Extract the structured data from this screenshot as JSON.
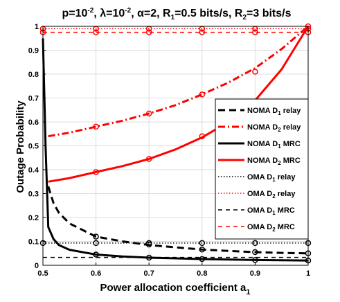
{
  "chart_data": {
    "type": "line",
    "title": {
      "base": "p=10",
      "sup1": "-2",
      "mid": ", λ=10",
      "sup2": "-2",
      "alpha": ", α=2, R",
      "sub1": "1",
      "r1": "=0.5 bits/s, R",
      "sub2": "2",
      "r2": "=3 bits/s"
    },
    "xlabel": {
      "text": "Power allocation coefficient a",
      "sub": "1"
    },
    "ylabel": "Outage Probability",
    "xlim": [
      0.5,
      1
    ],
    "ylim": [
      0,
      1
    ],
    "xticks": [
      0.5,
      0.6,
      0.7,
      0.8,
      0.9,
      1
    ],
    "xtick_labels": [
      "0.5",
      "0.6",
      "0.7",
      "0.8",
      "0.9",
      "1"
    ],
    "yticks": [
      0,
      0.1,
      0.2,
      0.3,
      0.4,
      0.5,
      0.6,
      0.7,
      0.8,
      0.9,
      1
    ],
    "ytick_labels": [
      "0",
      "0.1",
      "0.2",
      "0.3",
      "0.4",
      "0.5",
      "0.6",
      "0.7",
      "0.8",
      "0.9",
      "1"
    ],
    "grid": true,
    "legend_position": "right",
    "colors": {
      "black": "#000000",
      "red": "#ff0000"
    },
    "series": [
      {
        "name": {
          "pre": "NOMA D",
          "sub": "1",
          "post": " relay"
        },
        "color": "#000000",
        "dash": "dash",
        "width": 3,
        "x": [
          0.51,
          0.52,
          0.53,
          0.55,
          0.6,
          0.65,
          0.7,
          0.75,
          0.8,
          0.85,
          0.9,
          0.95,
          1.0
        ],
        "y": [
          0.33,
          0.26,
          0.22,
          0.175,
          0.12,
          0.1,
          0.085,
          0.075,
          0.066,
          0.06,
          0.055,
          0.052,
          0.05
        ],
        "markers_x": [
          0.6,
          0.7,
          0.8,
          0.9,
          1.0
        ],
        "markers_y": [
          0.12,
          0.087,
          0.066,
          0.055,
          0.05
        ]
      },
      {
        "name": {
          "pre": "NOMA D",
          "sub": "2",
          "post": " relay"
        },
        "color": "#ff0000",
        "dash": "dashdot",
        "width": 3,
        "x": [
          0.51,
          0.55,
          0.6,
          0.65,
          0.7,
          0.75,
          0.8,
          0.85,
          0.9,
          0.95,
          1.0
        ],
        "y": [
          0.54,
          0.555,
          0.58,
          0.605,
          0.635,
          0.67,
          0.715,
          0.765,
          0.825,
          0.905,
          1.0
        ],
        "markers_x": [
          0.6,
          0.7,
          0.8,
          0.9,
          1.0
        ],
        "markers_y": [
          0.58,
          0.635,
          0.715,
          0.81,
          0.99
        ]
      },
      {
        "name": {
          "pre": "NOMA D",
          "sub": "1",
          "post": " MRC"
        },
        "color": "#000000",
        "dash": "solid",
        "width": 3,
        "x": [
          0.5,
          0.505,
          0.51,
          0.52,
          0.53,
          0.55,
          0.6,
          0.65,
          0.7,
          0.8,
          0.9,
          1.0
        ],
        "y": [
          0.95,
          0.5,
          0.16,
          0.11,
          0.085,
          0.065,
          0.045,
          0.037,
          0.032,
          0.026,
          0.022,
          0.02
        ],
        "markers_x": [
          0.6,
          0.7,
          0.8,
          0.9,
          1.0
        ],
        "markers_y": [
          0.045,
          0.032,
          0.026,
          0.022,
          0.02
        ]
      },
      {
        "name": {
          "pre": "NOMA D",
          "sub": "2",
          "post": " MRC"
        },
        "color": "#ff0000",
        "dash": "solid",
        "width": 3,
        "x": [
          0.51,
          0.55,
          0.6,
          0.65,
          0.7,
          0.75,
          0.8,
          0.85,
          0.9,
          0.95,
          1.0
        ],
        "y": [
          0.35,
          0.365,
          0.39,
          0.415,
          0.445,
          0.485,
          0.535,
          0.6,
          0.69,
          0.82,
          1.0
        ],
        "markers_x": [
          0.6,
          0.7,
          0.8,
          1.0
        ],
        "markers_y": [
          0.39,
          0.445,
          0.54,
          1.0
        ]
      },
      {
        "name": {
          "pre": "OMA D",
          "sub": "1",
          "post": " relay"
        },
        "color": "#000000",
        "dash": "dot",
        "width": 1.5,
        "x": [
          0.5,
          1.0
        ],
        "y": [
          0.093,
          0.093
        ],
        "markers_x": [
          0.5,
          0.6,
          0.7,
          0.8,
          0.9,
          1.0
        ],
        "markers_y": [
          0.093,
          0.093,
          0.093,
          0.093,
          0.093,
          0.093
        ]
      },
      {
        "name": {
          "pre": "OMA D",
          "sub": "2",
          "post": " relay"
        },
        "color": "#ff0000",
        "dash": "dot",
        "width": 1.5,
        "x": [
          0.5,
          1.0
        ],
        "y": [
          0.99,
          0.99
        ],
        "markers_x": [
          0.5,
          0.6,
          0.7,
          0.8,
          0.9,
          1.0
        ],
        "markers_y": [
          0.99,
          0.99,
          0.99,
          0.99,
          0.99,
          0.99
        ]
      },
      {
        "name": {
          "pre": "OMA D",
          "sub": "1",
          "post": " MRC"
        },
        "color": "#000000",
        "dash": "dashfine",
        "width": 1.5,
        "x": [
          0.5,
          1.0
        ],
        "y": [
          0.033,
          0.033
        ],
        "markers_x": [],
        "markers_y": []
      },
      {
        "name": {
          "pre": "OMA D",
          "sub": "2",
          "post": " MRC"
        },
        "color": "#ff0000",
        "dash": "dashfine",
        "width": 1.5,
        "x": [
          0.5,
          1.0
        ],
        "y": [
          0.975,
          0.975
        ],
        "markers_x": [
          0.5,
          0.6,
          0.7,
          0.8,
          0.9,
          1.0
        ],
        "markers_y": [
          0.975,
          0.975,
          0.975,
          0.975,
          0.975,
          0.975
        ]
      }
    ]
  }
}
